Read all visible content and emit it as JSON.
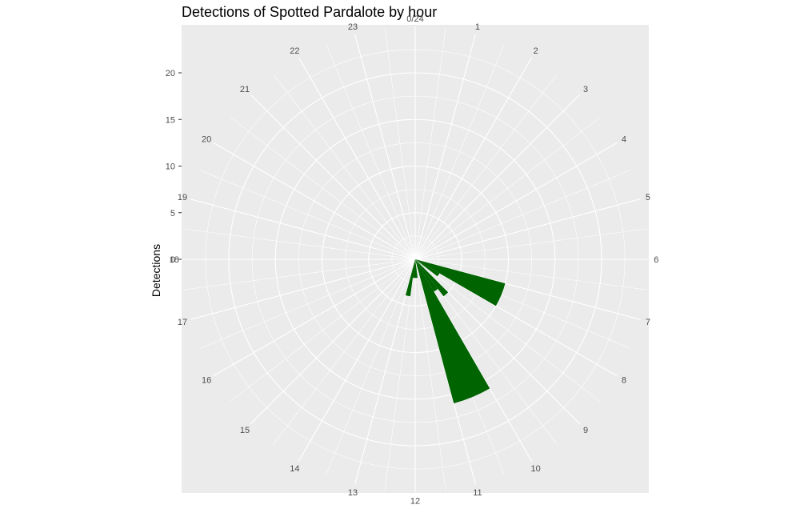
{
  "chart_data": {
    "type": "bar",
    "subtype": "polar",
    "title": "Detections of Spotted Pardalote by hour",
    "ylabel": "Detections",
    "xlabel": "",
    "ylim": [
      0,
      25
    ],
    "yticks": [
      0,
      5,
      10,
      15,
      20
    ],
    "categories": [
      "0/24",
      "1",
      "2",
      "3",
      "4",
      "5",
      "6",
      "7",
      "8",
      "9",
      "10",
      "11",
      "12",
      "13",
      "14",
      "15",
      "16",
      "17",
      "18",
      "19",
      "20",
      "21",
      "22",
      "23"
    ],
    "bin_edges_hours": [
      0,
      0.5,
      1,
      1.5,
      2,
      2.5,
      3,
      3.5,
      4,
      4.5,
      5,
      5.5,
      6,
      6.5,
      7,
      7.5,
      8,
      8.5,
      9,
      9.5,
      10,
      10.5,
      11,
      11.5,
      12,
      12.5,
      13,
      13.5,
      14,
      14.5,
      15,
      15.5,
      16,
      16.5,
      17,
      17.5,
      18,
      18.5,
      19,
      19.5,
      20,
      20.5,
      21,
      21.5,
      22,
      22.5,
      23,
      23.5,
      24
    ],
    "bars": [
      {
        "start": 7.0,
        "end": 8.0,
        "value": 10
      },
      {
        "start": 8.0,
        "end": 8.5,
        "value": 3
      },
      {
        "start": 9.0,
        "end": 9.5,
        "value": 5
      },
      {
        "start": 9.5,
        "end": 10.0,
        "value": 4
      },
      {
        "start": 10.0,
        "end": 11.0,
        "value": 16
      },
      {
        "start": 11.5,
        "end": 12.0,
        "value": 2
      },
      {
        "start": 12.0,
        "end": 12.5,
        "value": 2
      },
      {
        "start": 12.5,
        "end": 13.0,
        "value": 4
      }
    ],
    "bar_color": "#006400",
    "panel_background": "#ebebeb",
    "grid": true,
    "grid_color": "#ffffff"
  }
}
